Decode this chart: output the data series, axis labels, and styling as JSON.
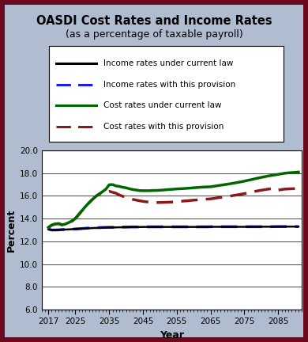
{
  "title_line1": "OASDI Cost Rates and Income Rates",
  "title_line2": "(as a percentage of taxable payroll)",
  "xlabel": "Year",
  "ylabel": "Percent",
  "ylim": [
    6.0,
    20.0
  ],
  "yticks": [
    6.0,
    8.0,
    10.0,
    12.0,
    14.0,
    16.0,
    18.0,
    20.0
  ],
  "xlim": [
    2015,
    2092
  ],
  "xticks": [
    2017,
    2025,
    2035,
    2045,
    2055,
    2065,
    2075,
    2085
  ],
  "bg_outer": "#b0bdd0",
  "bg_border": "#6b0a1e",
  "bg_inner": "#ffffff",
  "years": [
    2017,
    2018,
    2019,
    2020,
    2021,
    2022,
    2023,
    2024,
    2025,
    2026,
    2027,
    2028,
    2029,
    2030,
    2031,
    2032,
    2033,
    2034,
    2035,
    2036,
    2037,
    2038,
    2039,
    2040,
    2041,
    2042,
    2043,
    2044,
    2045,
    2046,
    2047,
    2048,
    2049,
    2050,
    2051,
    2052,
    2053,
    2054,
    2055,
    2056,
    2057,
    2058,
    2059,
    2060,
    2061,
    2062,
    2063,
    2064,
    2065,
    2066,
    2067,
    2068,
    2069,
    2070,
    2071,
    2072,
    2073,
    2074,
    2075,
    2076,
    2077,
    2078,
    2079,
    2080,
    2081,
    2082,
    2083,
    2084,
    2085,
    2086,
    2087,
    2088,
    2089,
    2090,
    2091
  ],
  "income_current_law": [
    13.07,
    13.0,
    13.0,
    13.01,
    13.03,
    13.04,
    13.05,
    13.07,
    13.09,
    13.1,
    13.12,
    13.13,
    13.15,
    13.17,
    13.18,
    13.19,
    13.2,
    13.21,
    13.22,
    13.22,
    13.23,
    13.24,
    13.24,
    13.25,
    13.25,
    13.26,
    13.26,
    13.26,
    13.27,
    13.27,
    13.27,
    13.27,
    13.27,
    13.27,
    13.27,
    13.27,
    13.27,
    13.27,
    13.27,
    13.27,
    13.27,
    13.27,
    13.27,
    13.27,
    13.27,
    13.27,
    13.27,
    13.27,
    13.27,
    13.28,
    13.28,
    13.28,
    13.28,
    13.28,
    13.28,
    13.28,
    13.28,
    13.28,
    13.28,
    13.28,
    13.29,
    13.29,
    13.29,
    13.29,
    13.29,
    13.29,
    13.29,
    13.29,
    13.3,
    13.3,
    13.3,
    13.3,
    13.3,
    13.3,
    13.3
  ],
  "income_provision": [
    13.07,
    13.0,
    13.0,
    13.01,
    13.03,
    13.04,
    13.05,
    13.07,
    13.09,
    13.11,
    13.13,
    13.15,
    13.17,
    13.18,
    13.2,
    13.21,
    13.22,
    13.23,
    13.24,
    13.24,
    13.25,
    13.25,
    13.26,
    13.26,
    13.27,
    13.27,
    13.27,
    13.27,
    13.28,
    13.28,
    13.28,
    13.28,
    13.28,
    13.28,
    13.28,
    13.28,
    13.28,
    13.28,
    13.28,
    13.28,
    13.28,
    13.28,
    13.28,
    13.28,
    13.28,
    13.28,
    13.28,
    13.28,
    13.29,
    13.29,
    13.29,
    13.29,
    13.29,
    13.29,
    13.29,
    13.29,
    13.29,
    13.29,
    13.29,
    13.29,
    13.29,
    13.29,
    13.29,
    13.29,
    13.29,
    13.29,
    13.29,
    13.3,
    13.3,
    13.3,
    13.3,
    13.3,
    13.3,
    13.3,
    13.3
  ],
  "cost_current_law": [
    13.22,
    13.43,
    13.53,
    13.56,
    13.46,
    13.52,
    13.65,
    13.79,
    14.02,
    14.36,
    14.72,
    15.07,
    15.39,
    15.68,
    15.95,
    16.16,
    16.37,
    16.59,
    16.98,
    17.0,
    16.88,
    16.84,
    16.76,
    16.71,
    16.63,
    16.56,
    16.52,
    16.47,
    16.46,
    16.46,
    16.46,
    16.48,
    16.48,
    16.5,
    16.52,
    16.55,
    16.57,
    16.59,
    16.62,
    16.63,
    16.65,
    16.67,
    16.69,
    16.72,
    16.74,
    16.76,
    16.78,
    16.79,
    16.81,
    16.85,
    16.9,
    16.94,
    16.99,
    17.03,
    17.08,
    17.13,
    17.19,
    17.24,
    17.3,
    17.37,
    17.43,
    17.5,
    17.57,
    17.63,
    17.69,
    17.75,
    17.8,
    17.85,
    17.9,
    17.95,
    18.0,
    18.03,
    18.05,
    18.07,
    18.1
  ],
  "cost_provision": [
    13.22,
    13.43,
    13.53,
    13.56,
    13.46,
    13.52,
    13.65,
    13.79,
    14.02,
    14.36,
    14.72,
    15.07,
    15.39,
    15.68,
    15.95,
    16.16,
    16.25,
    16.33,
    16.41,
    16.32,
    16.24,
    16.08,
    15.97,
    15.86,
    15.77,
    15.69,
    15.63,
    15.57,
    15.52,
    15.48,
    15.46,
    15.44,
    15.42,
    15.42,
    15.43,
    15.44,
    15.45,
    15.47,
    15.49,
    15.52,
    15.55,
    15.57,
    15.6,
    15.63,
    15.65,
    15.68,
    15.7,
    15.72,
    15.74,
    15.78,
    15.83,
    15.87,
    15.91,
    15.95,
    16.0,
    16.05,
    16.1,
    16.15,
    16.2,
    16.26,
    16.32,
    16.39,
    16.45,
    16.5,
    16.55,
    16.6,
    16.63,
    16.66,
    16.51,
    16.56,
    16.6,
    16.62,
    16.63,
    16.64,
    16.65
  ],
  "color_income_current": "#000000",
  "color_income_provision": "#1a1aff",
  "color_cost_current": "#006600",
  "color_cost_provision": "#8b1a1a",
  "legend_labels": [
    "Income rates under current law",
    "Income rates with this provision",
    "Cost rates under current law",
    "Cost rates with this provision"
  ]
}
